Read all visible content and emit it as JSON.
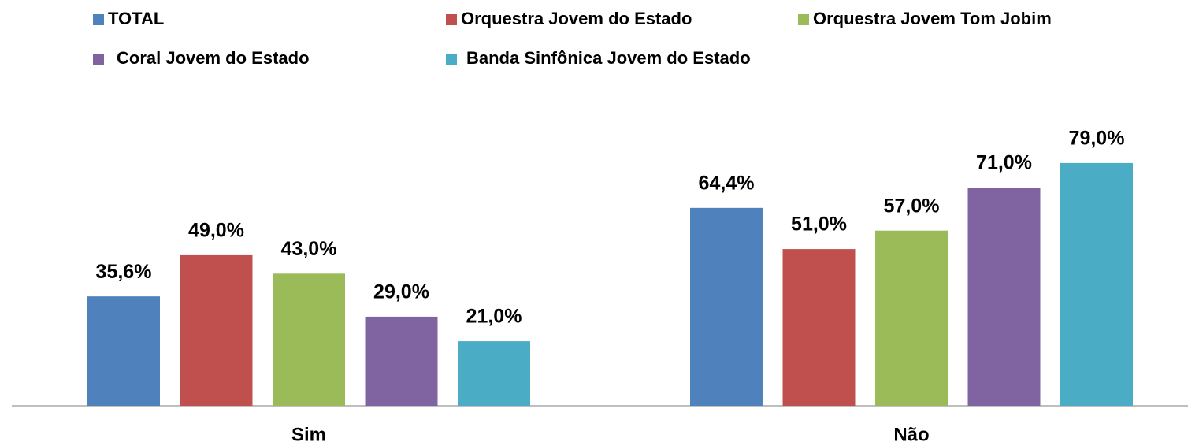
{
  "chart_data": {
    "type": "bar",
    "categories": [
      "Sim",
      "Não"
    ],
    "series": [
      {
        "name": "TOTAL",
        "color": "#4f81bd",
        "values": [
          35.6,
          64.4
        ],
        "value_labels": [
          "35,6%",
          "64,4%"
        ]
      },
      {
        "name": "Orquestra Jovem do Estado",
        "color": "#c0504d",
        "values": [
          49.0,
          51.0
        ],
        "value_labels": [
          "49,0%",
          "51,0%"
        ]
      },
      {
        "name": "Orquestra Jovem Tom Jobim",
        "color": "#9bbb59",
        "values": [
          43.0,
          57.0
        ],
        "value_labels": [
          "43,0%",
          "57,0%"
        ]
      },
      {
        "name": "Coral Jovem do Estado",
        "color": "#8064a2",
        "values": [
          29.0,
          71.0
        ],
        "value_labels": [
          "29,0%",
          "71,0%"
        ]
      },
      {
        "name": "Banda Sinfônica Jovem do Estado",
        "color": "#4bacc6",
        "values": [
          21.0,
          79.0
        ],
        "value_labels": [
          "21,0%",
          "79,0%"
        ]
      }
    ],
    "legend": "top"
  }
}
